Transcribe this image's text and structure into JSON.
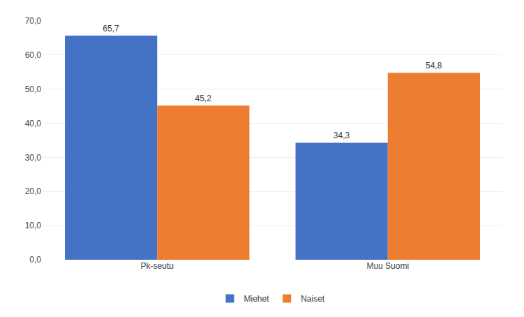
{
  "chart_data": {
    "type": "bar",
    "categories": [
      "Pk-seutu",
      "Muu Suomi"
    ],
    "series": [
      {
        "name": "Miehet",
        "color": "#4472C4",
        "values": [
          65.7,
          34.3
        ],
        "value_labels": [
          "65,7",
          "34,3"
        ]
      },
      {
        "name": "Naiset",
        "color": "#ED7D31",
        "values": [
          45.2,
          54.8
        ],
        "value_labels": [
          "45,2",
          "54,8"
        ]
      }
    ],
    "ylim": [
      0,
      70
    ],
    "yticks": [
      {
        "value": 0,
        "label": "0,0"
      },
      {
        "value": 10,
        "label": "10,0"
      },
      {
        "value": 20,
        "label": "20,0"
      },
      {
        "value": 30,
        "label": "30,0"
      },
      {
        "value": 40,
        "label": "40,0"
      },
      {
        "value": 50,
        "label": "50,0"
      },
      {
        "value": 60,
        "label": "60,0"
      },
      {
        "value": 70,
        "label": "70,0"
      }
    ],
    "grid": true,
    "data_labels": true,
    "legend": "bottom"
  }
}
